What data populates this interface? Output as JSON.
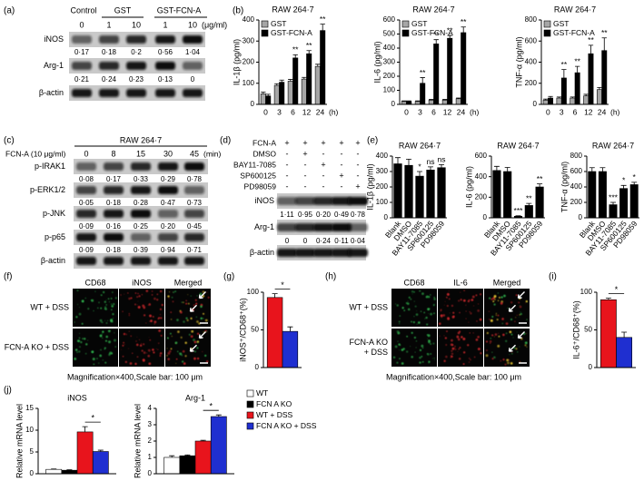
{
  "panels": {
    "a": {
      "letter": "(a)",
      "groups": [
        "Control",
        "GST",
        "GST-FCN-A"
      ],
      "doses": [
        "0",
        "1",
        "10",
        "1",
        "10"
      ],
      "dose_unit": "(μg/ml)",
      "rows": [
        {
          "label": "iNOS",
          "quant": [
            "0·17",
            "0·18",
            "0·2",
            "0·56",
            "1·04"
          ]
        },
        {
          "label": "Arg-1",
          "quant": [
            "0·21",
            "0·24",
            "0·23",
            "0·13",
            "0"
          ]
        },
        {
          "label": "β-actin"
        }
      ]
    },
    "b": {
      "letter": "(b)"
    },
    "c": {
      "letter": "(c)",
      "title": "RAW 264·7",
      "treatment": "FCN-A (10 μg/ml)",
      "times": [
        "0",
        "8",
        "15",
        "30",
        "45"
      ],
      "time_unit": "(min)",
      "rows": [
        {
          "label": "p-IRAK1",
          "quant": [
            "0·08",
            "0·17",
            "0·33",
            "0·29",
            "0·78"
          ]
        },
        {
          "label": "p-ERK1/2",
          "quant": [
            "0·05",
            "0·18",
            "0·28",
            "0·47",
            "0·73"
          ]
        },
        {
          "label": "p-JNK",
          "quant": [
            "0·09",
            "0·16",
            "0·25",
            "0·20",
            "0·45"
          ]
        },
        {
          "label": "p-p65",
          "quant": [
            "0·09",
            "0·18",
            "0·39",
            "0·94",
            "0·71"
          ]
        },
        {
          "label": "β-actin"
        }
      ]
    },
    "d": {
      "letter": "(d)",
      "treatments": [
        {
          "label": "FCN-A",
          "signs": [
            "+",
            "+",
            "+",
            "+",
            "+"
          ]
        },
        {
          "label": "DMSO",
          "signs": [
            "-",
            "+",
            "-",
            "-",
            "-"
          ]
        },
        {
          "label": "BAY11-7085",
          "signs": [
            "-",
            "-",
            "+",
            "-",
            "-"
          ]
        },
        {
          "label": "SP600125",
          "signs": [
            "-",
            "-",
            "-",
            "+",
            "-"
          ]
        },
        {
          "label": "PD98059",
          "signs": [
            "-",
            "-",
            "-",
            "-",
            "+"
          ]
        }
      ],
      "rows": [
        {
          "label": "iNOS",
          "quant": [
            "1·11",
            "0·95",
            "0·20",
            "0·49",
            "0·78"
          ]
        },
        {
          "label": "Arg-1",
          "quant": [
            "0",
            "0",
            "0·24",
            "0·11",
            "0·04"
          ]
        },
        {
          "label": "β-actin"
        }
      ]
    },
    "e": {
      "letter": "(e)"
    },
    "f": {
      "letter": "(f)",
      "columns": [
        "CD68",
        "iNOS",
        "Merged"
      ],
      "rows": [
        {
          "lines": [
            "WT + DSS"
          ]
        },
        {
          "lines": [
            "FCN-A KO + DSS"
          ]
        }
      ],
      "caption": "Magnification×400,Scale bar: 100 μm"
    },
    "g": {
      "letter": "(g)"
    },
    "h": {
      "letter": "(h)",
      "columns": [
        "CD68",
        "IL-6",
        "Merged"
      ],
      "rows": [
        {
          "lines": [
            "WT + DSS"
          ]
        },
        {
          "lines": [
            "FCN-A KO",
            "+ DSS"
          ]
        }
      ],
      "caption": "Magnification×400,Scale bar: 100 μm"
    },
    "i": {
      "letter": "(i)"
    },
    "j": {
      "letter": "(j)"
    }
  },
  "chart_data": [
    {
      "type": "bar",
      "title": "RAW 264·7",
      "ylabel": "IL-1β (pg/ml)",
      "categories": [
        "0",
        "3",
        "6",
        "12",
        "24"
      ],
      "xunit": "(h)",
      "ylim": [
        0,
        400
      ],
      "yticks": [
        0,
        100,
        200,
        300,
        400
      ],
      "legend": "upper left",
      "series": [
        {
          "name": "GST",
          "color": "#a6a6a6",
          "values": [
            50,
            90,
            110,
            120,
            180
          ],
          "errors": [
            8,
            8,
            8,
            8,
            10
          ]
        },
        {
          "name": "GST-FCN-A",
          "color": "#000000",
          "values": [
            40,
            105,
            220,
            240,
            350
          ],
          "errors": [
            8,
            10,
            15,
            15,
            30
          ],
          "significance": [
            null,
            null,
            "**",
            "**",
            "**"
          ]
        }
      ]
    },
    {
      "type": "bar",
      "title": "RAW 264·7",
      "ylabel": "IL-6 (pg/ml)",
      "categories": [
        "0",
        "3",
        "6",
        "12",
        "24"
      ],
      "xunit": "(h)",
      "ylim": [
        0,
        600
      ],
      "yticks": [
        0,
        100,
        200,
        300,
        400,
        500,
        600
      ],
      "legend": "upper left",
      "series": [
        {
          "name": "GST",
          "color": "#a6a6a6",
          "values": [
            20,
            20,
            30,
            30,
            40
          ],
          "errors": [
            5,
            5,
            5,
            5,
            5
          ]
        },
        {
          "name": "GST-FCN-A",
          "color": "#000000",
          "values": [
            20,
            150,
            430,
            470,
            510
          ],
          "errors": [
            5,
            40,
            30,
            20,
            40
          ],
          "significance": [
            null,
            "**",
            "**",
            "**",
            "**"
          ]
        }
      ]
    },
    {
      "type": "bar",
      "title": "RAW 264·7",
      "ylabel": "TNF-α (pg/ml)",
      "categories": [
        "0",
        "3",
        "6",
        "12",
        "24"
      ],
      "xunit": "(h)",
      "ylim": [
        0,
        800
      ],
      "yticks": [
        0,
        200,
        400,
        600,
        800
      ],
      "legend": "upper left",
      "series": [
        {
          "name": "GST",
          "color": "#a6a6a6",
          "values": [
            40,
            60,
            60,
            80,
            140
          ],
          "errors": [
            10,
            10,
            10,
            15,
            20
          ]
        },
        {
          "name": "GST-FCN-A",
          "color": "#000000",
          "values": [
            60,
            250,
            300,
            480,
            510
          ],
          "errors": [
            15,
            80,
            60,
            80,
            120
          ],
          "significance": [
            null,
            "**",
            "**",
            "**",
            "**"
          ]
        }
      ]
    },
    {
      "type": "bar",
      "title": "RAW 264·7",
      "ylabel": "IL-1β (pg/ml)",
      "categories": [
        "Blank",
        "DMSO",
        "BAY11-7085",
        "SP600125",
        "PD98059"
      ],
      "ylim": [
        0,
        400
      ],
      "yticks": [
        0,
        100,
        200,
        300,
        400
      ],
      "series": [
        {
          "color": "#000000",
          "values": [
            350,
            340,
            270,
            310,
            325
          ],
          "errors": [
            40,
            40,
            30,
            20,
            20
          ],
          "significance": [
            null,
            null,
            "*",
            "ns",
            "ns"
          ]
        }
      ]
    },
    {
      "type": "bar",
      "title": "RAW 264·7",
      "ylabel": "IL-6 (pg/ml)",
      "categories": [
        "Blank",
        "DMSO",
        "BAY11-7085",
        "SP600125",
        "PD98059"
      ],
      "ylim": [
        0,
        600
      ],
      "yticks": [
        0,
        200,
        400,
        600
      ],
      "series": [
        {
          "color": "#000000",
          "values": [
            460,
            450,
            15,
            120,
            300
          ],
          "errors": [
            40,
            40,
            5,
            20,
            30
          ],
          "significance": [
            null,
            null,
            "***",
            "**",
            "**"
          ]
        }
      ]
    },
    {
      "type": "bar",
      "title": "RAW 264·7",
      "ylabel": "TNF-α (pg/ml)",
      "categories": [
        "Blank",
        "DMSO",
        "BAY11-7085",
        "SP600125",
        "PD98059"
      ],
      "ylim": [
        0,
        800
      ],
      "yticks": [
        0,
        200,
        400,
        600,
        800
      ],
      "series": [
        {
          "color": "#000000",
          "values": [
            600,
            600,
            170,
            380,
            430
          ],
          "errors": [
            50,
            50,
            30,
            40,
            30
          ],
          "significance": [
            null,
            null,
            "***",
            "*",
            "*"
          ]
        }
      ]
    },
    {
      "type": "bar",
      "ylabel": "iNOS⁺/CD68⁺(%)",
      "ylim": [
        0,
        100
      ],
      "yticks": [
        0,
        50,
        100
      ],
      "significance": "*",
      "series": [
        {
          "color": "#e8141c",
          "values": [
            93
          ],
          "errors": [
            5
          ]
        },
        {
          "color": "#1f2fd0",
          "values": [
            48
          ],
          "errors": [
            6
          ]
        }
      ]
    },
    {
      "type": "bar",
      "ylabel": "IL-6⁺/CD68⁺(%)",
      "ylim": [
        0,
        100
      ],
      "yticks": [
        0,
        50,
        100
      ],
      "significance": "*",
      "series": [
        {
          "color": "#e8141c",
          "values": [
            90
          ],
          "errors": [
            2
          ]
        },
        {
          "color": "#1f2fd0",
          "values": [
            40
          ],
          "errors": [
            7
          ]
        }
      ]
    },
    {
      "type": "bar",
      "title": "iNOS",
      "ylabel": "Relative mRNA level",
      "ylim": [
        0,
        15
      ],
      "yticks": [
        0,
        5,
        10,
        15
      ],
      "legend": "right",
      "significance": "*",
      "series": [
        {
          "name": "WT",
          "color": "#ffffff",
          "values": [
            1
          ],
          "errors": [
            0.1
          ]
        },
        {
          "name": "FCN A KO",
          "color": "#000000",
          "values": [
            0.8
          ],
          "errors": [
            0.1
          ]
        },
        {
          "name": "WT + DSS",
          "color": "#e8141c",
          "values": [
            9.6
          ],
          "errors": [
            1.2
          ]
        },
        {
          "name": "FCN A KO + DSS",
          "color": "#1f2fd0",
          "values": [
            5.1
          ],
          "errors": [
            0.3
          ]
        }
      ]
    },
    {
      "type": "bar",
      "title": "Arg-1",
      "ylabel": "Relative mRNA level",
      "ylim": [
        0,
        4
      ],
      "yticks": [
        0,
        1,
        2,
        3,
        4
      ],
      "significance": "*",
      "series": [
        {
          "color": "#ffffff",
          "values": [
            1
          ],
          "errors": [
            0.1
          ]
        },
        {
          "color": "#000000",
          "values": [
            1.1
          ],
          "errors": [
            0.05
          ]
        },
        {
          "color": "#e8141c",
          "values": [
            2
          ],
          "errors": [
            0.05
          ]
        },
        {
          "color": "#1f2fd0",
          "values": [
            3.5
          ],
          "errors": [
            0.1
          ]
        }
      ]
    }
  ]
}
